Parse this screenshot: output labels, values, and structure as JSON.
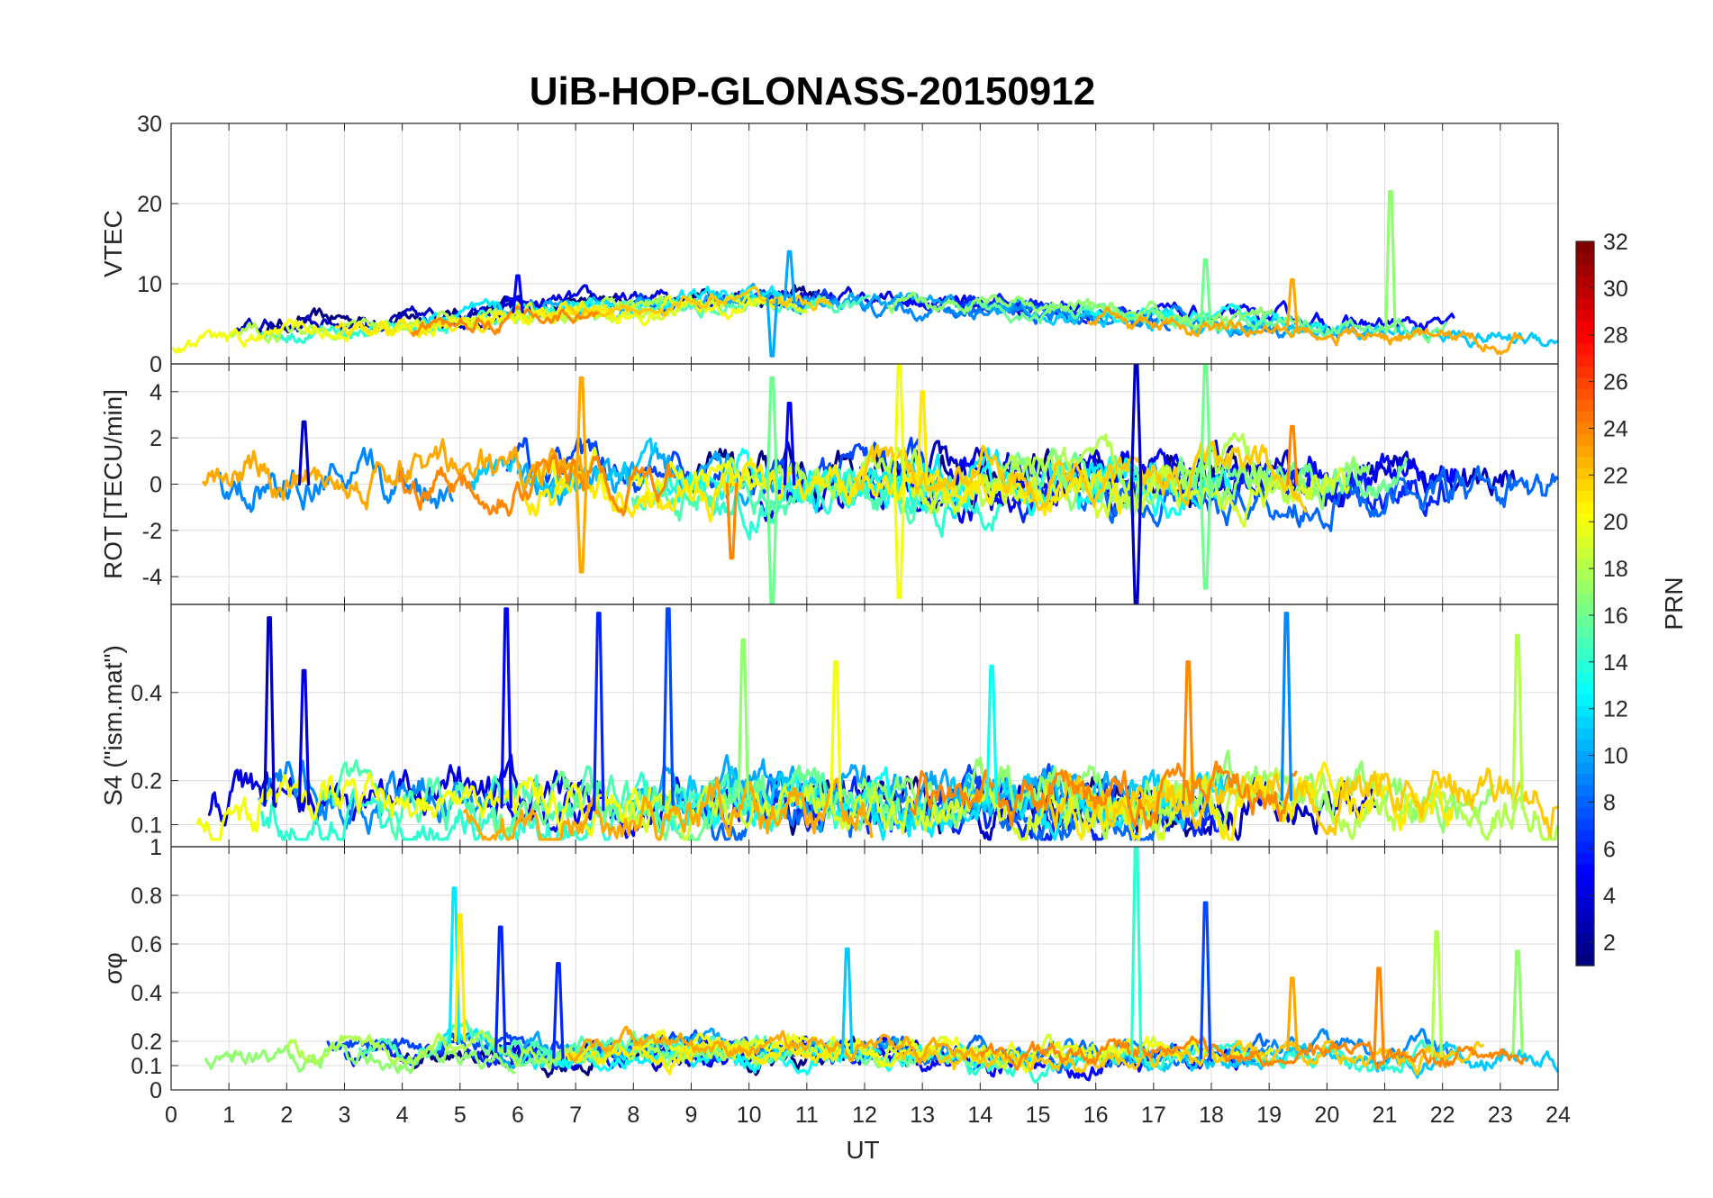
{
  "chart_data": {
    "type": "line",
    "title": "UiB-HOP-GLONASS-20150912",
    "xlabel": "UT",
    "xlim": [
      0,
      24
    ],
    "xticks": [
      "0",
      "1",
      "2",
      "3",
      "4",
      "5",
      "6",
      "7",
      "8",
      "9",
      "10",
      "11",
      "12",
      "13",
      "14",
      "15",
      "16",
      "17",
      "18",
      "19",
      "20",
      "21",
      "22",
      "23",
      "24"
    ],
    "grid": true,
    "panels": [
      {
        "ylabel": "VTEC",
        "ylim": [
          0,
          30
        ],
        "yticks": [
          {
            "v": 0,
            "label": "0"
          },
          {
            "v": 10,
            "label": "10"
          },
          {
            "v": 20,
            "label": "20"
          },
          {
            "v": 30,
            "label": "30"
          }
        ],
        "baseline_by_hour": [
          3,
          3.5,
          4.5,
          5,
          5,
          5.5,
          6.5,
          7,
          7,
          8,
          8,
          8,
          7.5,
          7,
          7,
          6.5,
          6,
          5.5,
          5,
          5,
          4.5,
          4,
          4,
          3.5,
          3.5
        ],
        "noise": 1.2,
        "spikes": [
          {
            "x": 6.0,
            "y": 11,
            "prn": 5
          },
          {
            "x": 10.7,
            "y": 14,
            "prn": 10
          },
          {
            "x": 17.9,
            "y": 13,
            "prn": 16
          },
          {
            "x": 21.1,
            "y": 21.5,
            "prn": 17
          },
          {
            "x": 19.4,
            "y": 10.5,
            "prn": 23
          },
          {
            "x": 10.4,
            "y": 1,
            "prn": 10
          }
        ]
      },
      {
        "ylabel": "ROT [TECU/min]",
        "ylim": [
          -5.2,
          5.2
        ],
        "yticks": [
          {
            "v": -4,
            "label": "-4"
          },
          {
            "v": -2,
            "label": "-2"
          },
          {
            "v": 0,
            "label": "0"
          },
          {
            "v": 2,
            "label": "2"
          },
          {
            "v": 4,
            "label": "4"
          }
        ],
        "baseline_by_hour": [
          0,
          0,
          0,
          0,
          0,
          0,
          0,
          0,
          0,
          0,
          0,
          0,
          0,
          0,
          0,
          0,
          0,
          0,
          0,
          0,
          0,
          0,
          0,
          0,
          0
        ],
        "noise": 1.0,
        "spikes": [
          {
            "x": 7.1,
            "y": 4.6,
            "prn": 23
          },
          {
            "x": 7.1,
            "y": -3.8,
            "prn": 23
          },
          {
            "x": 10.4,
            "y": 4.6,
            "prn": 16
          },
          {
            "x": 10.4,
            "y": -5.2,
            "prn": 16
          },
          {
            "x": 10.7,
            "y": 3.5,
            "prn": 5
          },
          {
            "x": 12.6,
            "y": 5.2,
            "prn": 20
          },
          {
            "x": 12.6,
            "y": -4.9,
            "prn": 20
          },
          {
            "x": 13.0,
            "y": 4.0,
            "prn": 21
          },
          {
            "x": 16.7,
            "y": 5.2,
            "prn": 3
          },
          {
            "x": 16.7,
            "y": -5.2,
            "prn": 3
          },
          {
            "x": 17.9,
            "y": 5.2,
            "prn": 16
          },
          {
            "x": 17.9,
            "y": -4.5,
            "prn": 16
          },
          {
            "x": 9.7,
            "y": -3.2,
            "prn": 24
          },
          {
            "x": 2.3,
            "y": 2.7,
            "prn": 3
          },
          {
            "x": 19.4,
            "y": 2.5,
            "prn": 24
          }
        ]
      },
      {
        "ylabel": "S4 (\"ism.mat\")",
        "ylim": [
          0.05,
          0.6
        ],
        "yticks": [
          {
            "v": 0.1,
            "label": "0.1"
          },
          {
            "v": 0.2,
            "label": "0.2"
          },
          {
            "v": 0.4,
            "label": "0.4"
          }
        ],
        "baseline_by_hour": [
          0.12,
          0.13,
          0.15,
          0.14,
          0.13,
          0.14,
          0.14,
          0.13,
          0.14,
          0.15,
          0.16,
          0.16,
          0.15,
          0.15,
          0.15,
          0.15,
          0.15,
          0.15,
          0.16,
          0.16,
          0.15,
          0.15,
          0.14,
          0.14,
          0.13
        ],
        "noise": 0.06,
        "spikes": [
          {
            "x": 1.7,
            "y": 0.57,
            "prn": 3
          },
          {
            "x": 2.3,
            "y": 0.45,
            "prn": 4
          },
          {
            "x": 5.8,
            "y": 0.59,
            "prn": 5
          },
          {
            "x": 7.4,
            "y": 0.58,
            "prn": 6
          },
          {
            "x": 8.6,
            "y": 0.59,
            "prn": 7
          },
          {
            "x": 9.9,
            "y": 0.52,
            "prn": 17
          },
          {
            "x": 11.5,
            "y": 0.47,
            "prn": 20
          },
          {
            "x": 14.2,
            "y": 0.46,
            "prn": 13
          },
          {
            "x": 17.6,
            "y": 0.47,
            "prn": 24
          },
          {
            "x": 19.3,
            "y": 0.58,
            "prn": 9
          },
          {
            "x": 23.3,
            "y": 0.53,
            "prn": 18
          }
        ]
      },
      {
        "ylabel": "σφ",
        "ylim": [
          0,
          1
        ],
        "yticks": [
          {
            "v": 0,
            "label": "0"
          },
          {
            "v": 0.1,
            "label": "0.1"
          },
          {
            "v": 0.2,
            "label": "0.2"
          },
          {
            "v": 0.4,
            "label": "0.4"
          },
          {
            "v": 0.6,
            "label": "0.6"
          },
          {
            "v": 0.8,
            "label": "0.8"
          },
          {
            "v": 1,
            "label": "1"
          }
        ],
        "baseline_by_hour": [
          0.14,
          0.15,
          0.16,
          0.17,
          0.14,
          0.2,
          0.14,
          0.13,
          0.17,
          0.16,
          0.15,
          0.16,
          0.15,
          0.14,
          0.13,
          0.13,
          0.13,
          0.14,
          0.13,
          0.16,
          0.17,
          0.13,
          0.14,
          0.15,
          0.15
        ],
        "noise": 0.05,
        "spikes": [
          {
            "x": 4.9,
            "y": 0.83,
            "prn": 12
          },
          {
            "x": 5.0,
            "y": 0.72,
            "prn": 21
          },
          {
            "x": 5.7,
            "y": 0.67,
            "prn": 6
          },
          {
            "x": 6.7,
            "y": 0.52,
            "prn": 6
          },
          {
            "x": 11.7,
            "y": 0.58,
            "prn": 11
          },
          {
            "x": 16.7,
            "y": 1.0,
            "prn": 14
          },
          {
            "x": 17.9,
            "y": 0.77,
            "prn": 7
          },
          {
            "x": 19.4,
            "y": 0.46,
            "prn": 23
          },
          {
            "x": 20.9,
            "y": 0.5,
            "prn": 24
          },
          {
            "x": 21.9,
            "y": 0.65,
            "prn": 18
          },
          {
            "x": 23.3,
            "y": 0.57,
            "prn": 17
          }
        ]
      }
    ],
    "colorbar": {
      "label": "PRN",
      "range": [
        1,
        32
      ],
      "colormap": "jet",
      "ticks": [
        "2",
        "4",
        "6",
        "8",
        "10",
        "12",
        "14",
        "16",
        "18",
        "20",
        "22",
        "24",
        "26",
        "28",
        "30",
        "32"
      ],
      "tick_values": [
        2,
        4,
        6,
        8,
        10,
        12,
        14,
        16,
        18,
        20,
        22,
        24,
        26,
        28,
        30,
        32
      ]
    },
    "satellites_prn": [
      1,
      3,
      4,
      5,
      6,
      7,
      8,
      9,
      10,
      11,
      12,
      13,
      14,
      15,
      16,
      17,
      18,
      19,
      20,
      21,
      22,
      23,
      24
    ]
  }
}
